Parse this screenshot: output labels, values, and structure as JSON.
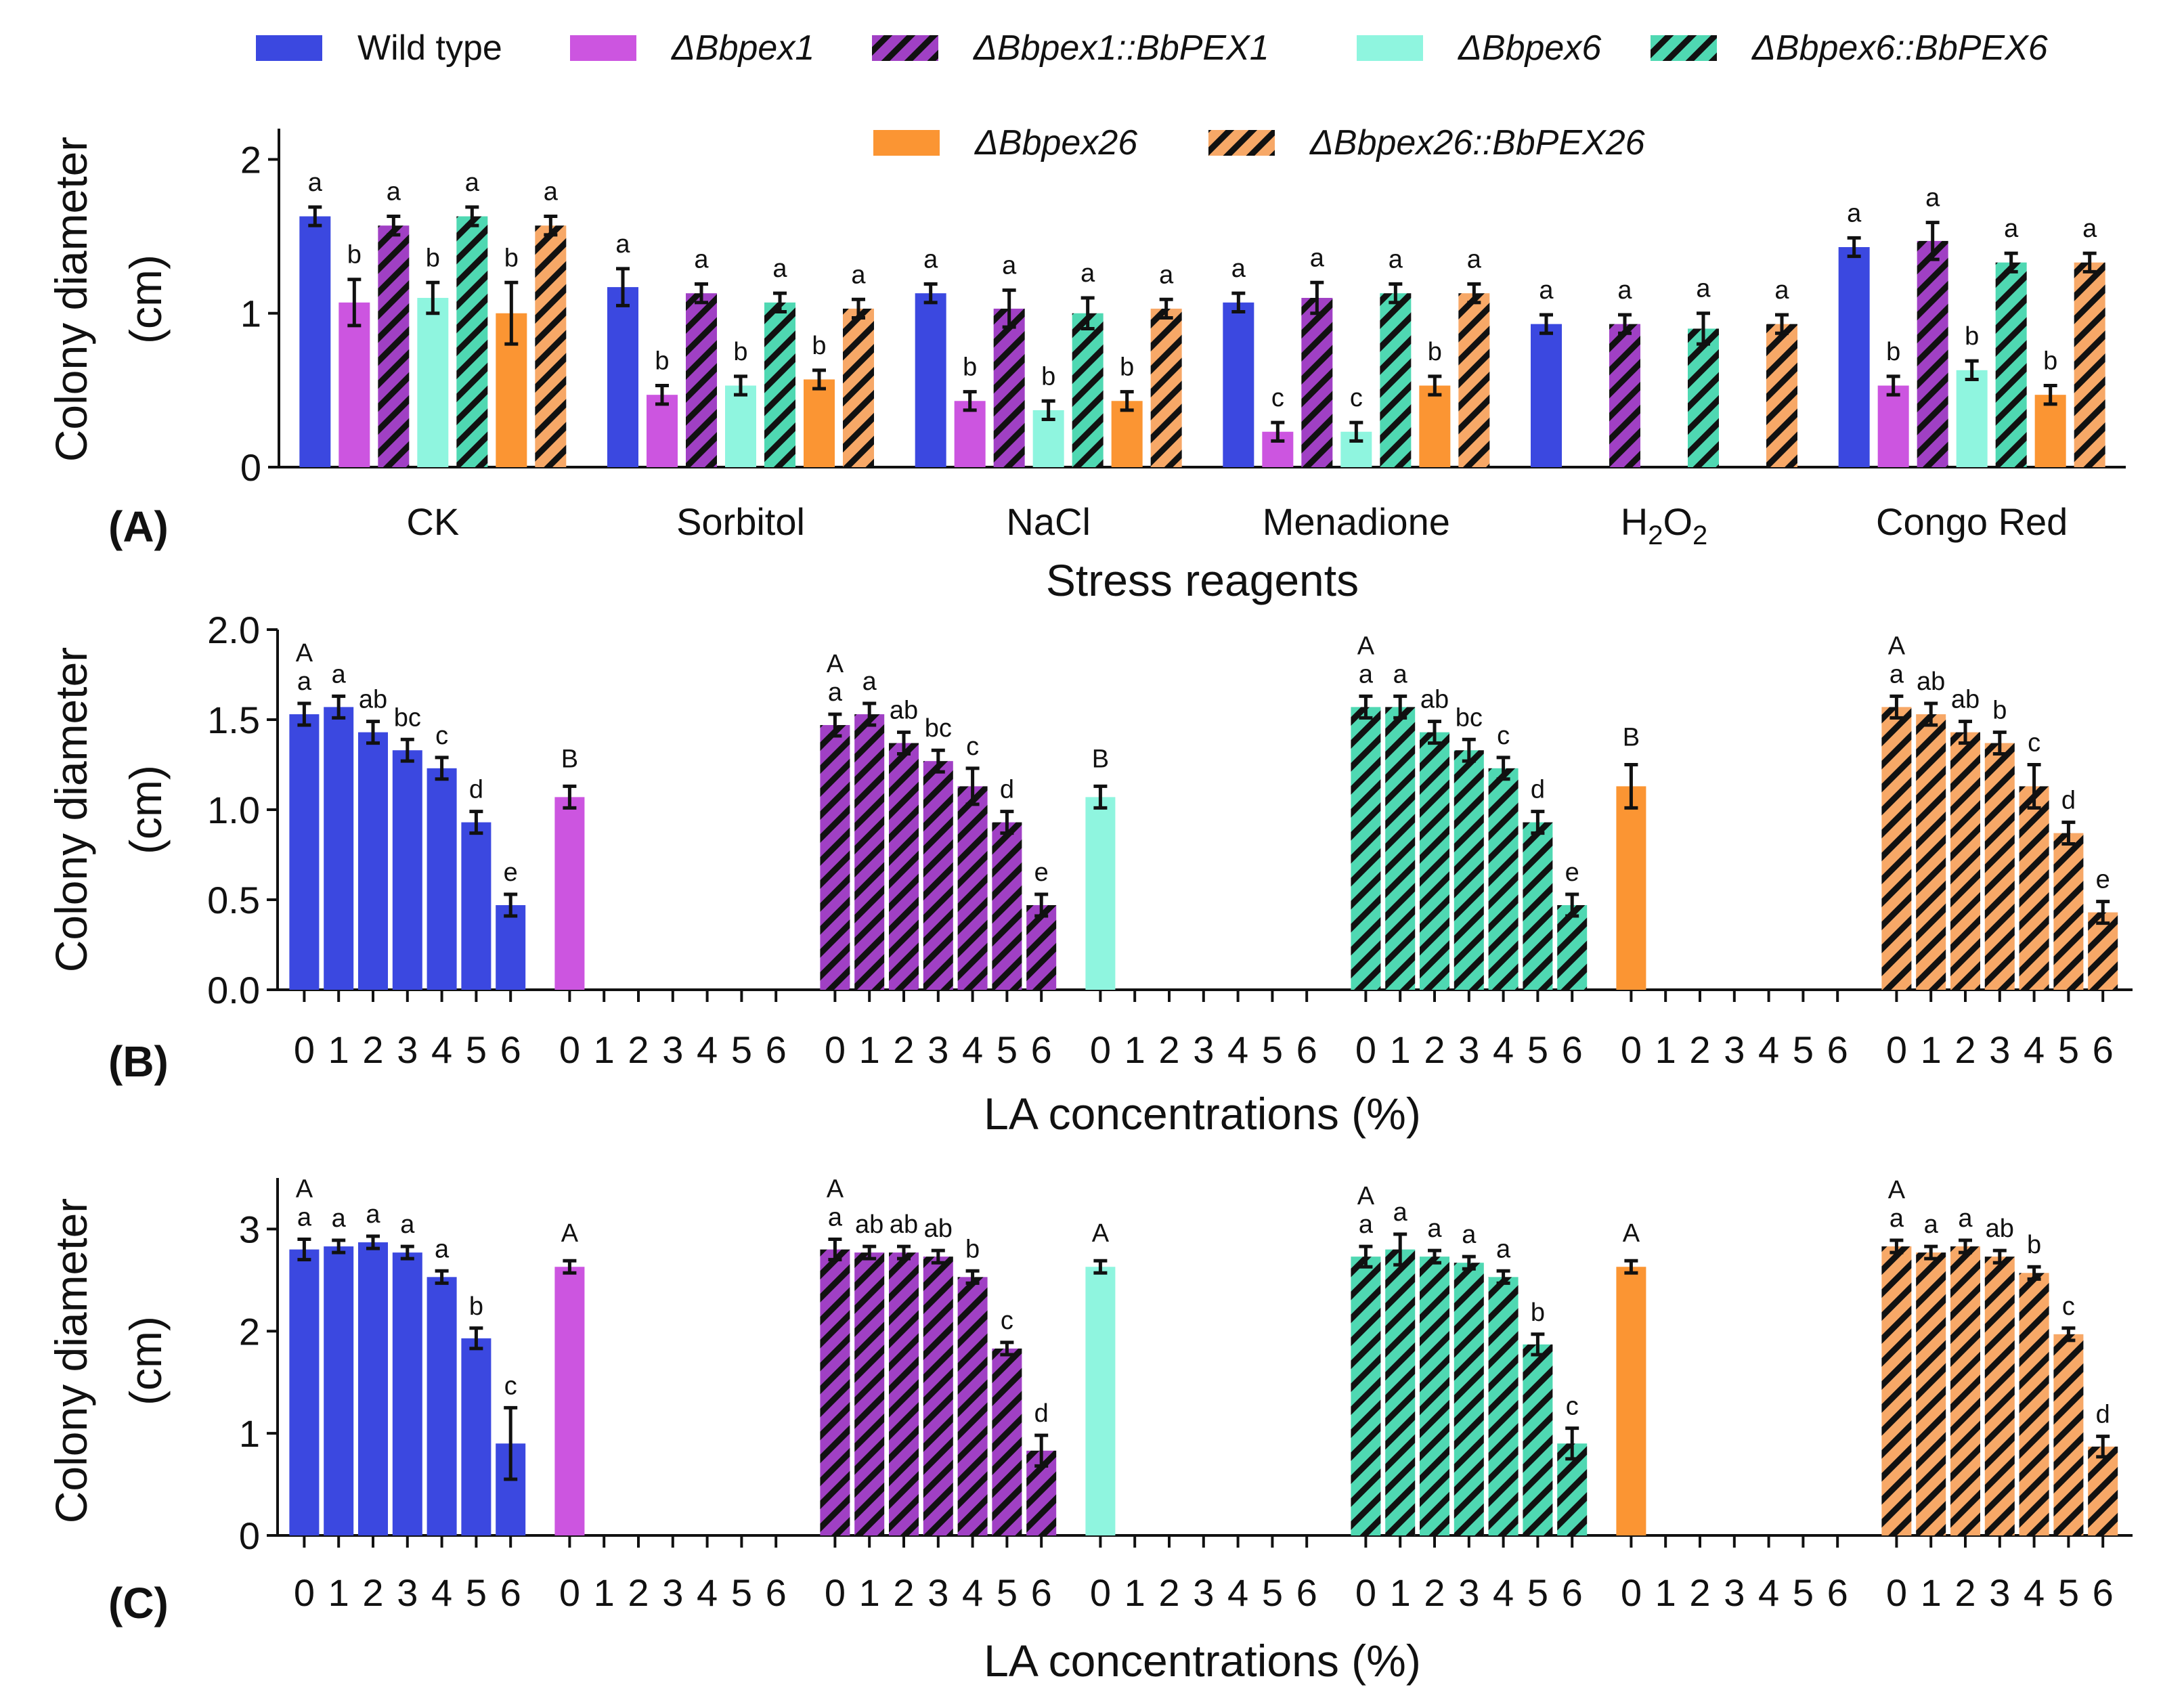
{
  "colors": {
    "wild_type": "#3b48e0",
    "pex1": "#cc55e0",
    "pex6": "#8ff5df",
    "pex26": "#fb9533",
    "pex1_comp_base": "#a040c4",
    "pex6_comp_base": "#4fd8b2",
    "pex26_comp_base": "#f7a867",
    "hatch": "#111111"
  },
  "legend": [
    {
      "key": "wt",
      "label": "Wild type",
      "color": "#3b48e0",
      "hatch": false,
      "italic": false
    },
    {
      "key": "p1",
      "label": "ΔBbpex1",
      "color": "#cc55e0",
      "hatch": false,
      "italic": true
    },
    {
      "key": "p1c",
      "label": "ΔBbpex1::BbPEX1",
      "color": "#a040c4",
      "hatch": true,
      "italic": true
    },
    {
      "key": "p6",
      "label": "ΔBbpex6",
      "color": "#8ff5df",
      "hatch": false,
      "italic": true
    },
    {
      "key": "p6c",
      "label": "ΔBbpex6::BbPEX6",
      "color": "#4fd8b2",
      "hatch": true,
      "italic": true
    },
    {
      "key": "p26",
      "label": "ΔBbpex26",
      "color": "#fb9533",
      "hatch": false,
      "italic": true
    },
    {
      "key": "p26c",
      "label": "ΔBbpex26::BbPEX26",
      "color": "#f7a867",
      "hatch": true,
      "italic": true
    }
  ],
  "chart_data": [
    {
      "panel": "(A)",
      "type": "bar",
      "ylabel_line1": "Colony diameter",
      "ylabel_line2": "(cm)",
      "xlabel": "Stress reagents",
      "ylim": [
        0,
        2.2
      ],
      "yticks": [
        "0",
        "1",
        "2"
      ],
      "ytick_values": [
        0,
        1,
        2
      ],
      "categories": [
        "CK",
        "Sorbitol",
        "NaCl",
        "Menadione",
        "H2O2",
        "Congo Red"
      ],
      "series": [
        {
          "name": "Wild type",
          "values": [
            1.63,
            1.17,
            1.13,
            1.07,
            0.93,
            1.43
          ],
          "errors": [
            0.06,
            0.12,
            0.06,
            0.06,
            0.06,
            0.06
          ],
          "letters": [
            "a",
            "a",
            "a",
            "a",
            "a",
            "a"
          ]
        },
        {
          "name": "ΔBbpex1",
          "values": [
            1.07,
            0.47,
            0.43,
            0.23,
            null,
            0.53
          ],
          "errors": [
            0.15,
            0.06,
            0.06,
            0.06,
            null,
            0.06
          ],
          "letters": [
            "b",
            "b",
            "b",
            "c",
            "",
            "b"
          ]
        },
        {
          "name": "ΔBbpex1::BbPEX1",
          "values": [
            1.57,
            1.13,
            1.03,
            1.1,
            0.93,
            1.47
          ],
          "errors": [
            0.06,
            0.06,
            0.12,
            0.1,
            0.06,
            0.12
          ],
          "letters": [
            "a",
            "a",
            "a",
            "a",
            "a",
            "a"
          ]
        },
        {
          "name": "ΔBbpex6",
          "values": [
            1.1,
            0.53,
            0.37,
            0.23,
            null,
            0.63
          ],
          "errors": [
            0.1,
            0.06,
            0.06,
            0.06,
            null,
            0.06
          ],
          "letters": [
            "b",
            "b",
            "b",
            "c",
            "",
            "b"
          ]
        },
        {
          "name": "ΔBbpex6::BbPEX6",
          "values": [
            1.63,
            1.07,
            1.0,
            1.13,
            0.9,
            1.33
          ],
          "errors": [
            0.06,
            0.06,
            0.1,
            0.06,
            0.1,
            0.06
          ],
          "letters": [
            "a",
            "a",
            "a",
            "a",
            "a",
            "a"
          ]
        },
        {
          "name": "ΔBbpex26",
          "values": [
            1.0,
            0.57,
            0.43,
            0.53,
            null,
            0.47
          ],
          "errors": [
            0.2,
            0.06,
            0.06,
            0.06,
            null,
            0.06
          ],
          "letters": [
            "b",
            "b",
            "b",
            "b",
            "",
            "b"
          ]
        },
        {
          "name": "ΔBbpex26::BbPEX26",
          "values": [
            1.57,
            1.03,
            1.03,
            1.13,
            0.93,
            1.33
          ],
          "errors": [
            0.06,
            0.06,
            0.06,
            0.06,
            0.06,
            0.06
          ],
          "letters": [
            "a",
            "a",
            "a",
            "a",
            "a",
            "a"
          ]
        }
      ]
    },
    {
      "panel": "(B)",
      "type": "bar",
      "ylabel_line1": "Colony diameter",
      "ylabel_line2": "(cm)",
      "xlabel": "LA concentrations (%)",
      "ylim": [
        0,
        2.0
      ],
      "yticks": [
        "0.0",
        "0.5",
        "1.0",
        "1.5",
        "2.0"
      ],
      "ytick_values": [
        0,
        0.5,
        1.0,
        1.5,
        2.0
      ],
      "concentrations": [
        "0",
        "1",
        "2",
        "3",
        "4",
        "5",
        "6"
      ],
      "groups": [
        {
          "name": "Wild type",
          "values": [
            1.53,
            1.57,
            1.43,
            1.33,
            1.23,
            0.93,
            0.47
          ],
          "errors": [
            0.06,
            0.06,
            0.06,
            0.06,
            0.06,
            0.06,
            0.06
          ],
          "letters": [
            "a",
            "a",
            "ab",
            "bc",
            "c",
            "d",
            "e"
          ],
          "cap": "A"
        },
        {
          "name": "ΔBbpex1",
          "values": [
            1.07,
            null,
            null,
            null,
            null,
            null,
            null
          ],
          "errors": [
            0.06,
            null,
            null,
            null,
            null,
            null,
            null
          ],
          "letters": [
            "",
            "",
            "",
            "",
            "",
            "",
            ""
          ],
          "cap": "B"
        },
        {
          "name": "ΔBbpex1::BbPEX1",
          "values": [
            1.47,
            1.53,
            1.37,
            1.27,
            1.13,
            0.93,
            0.47
          ],
          "errors": [
            0.06,
            0.06,
            0.06,
            0.06,
            0.1,
            0.06,
            0.06
          ],
          "letters": [
            "a",
            "a",
            "ab",
            "bc",
            "c",
            "d",
            "e"
          ],
          "cap": "A"
        },
        {
          "name": "ΔBbpex6",
          "values": [
            1.07,
            null,
            null,
            null,
            null,
            null,
            null
          ],
          "errors": [
            0.06,
            null,
            null,
            null,
            null,
            null,
            null
          ],
          "letters": [
            "",
            "",
            "",
            "",
            "",
            "",
            ""
          ],
          "cap": "B"
        },
        {
          "name": "ΔBbpex6::BbPEX6",
          "values": [
            1.57,
            1.57,
            1.43,
            1.33,
            1.23,
            0.93,
            0.47
          ],
          "errors": [
            0.06,
            0.06,
            0.06,
            0.06,
            0.06,
            0.06,
            0.06
          ],
          "letters": [
            "a",
            "a",
            "ab",
            "bc",
            "c",
            "d",
            "e"
          ],
          "cap": "A"
        },
        {
          "name": "ΔBbpex26",
          "values": [
            1.13,
            null,
            null,
            null,
            null,
            null,
            null
          ],
          "errors": [
            0.12,
            null,
            null,
            null,
            null,
            null,
            null
          ],
          "letters": [
            "",
            "",
            "",
            "",
            "",
            "",
            ""
          ],
          "cap": "B"
        },
        {
          "name": "ΔBbpex26::BbPEX26",
          "values": [
            1.57,
            1.53,
            1.43,
            1.37,
            1.13,
            0.87,
            0.43
          ],
          "errors": [
            0.06,
            0.06,
            0.06,
            0.06,
            0.12,
            0.06,
            0.06
          ],
          "letters": [
            "a",
            "ab",
            "ab",
            "b",
            "c",
            "d",
            "e"
          ],
          "cap": "A"
        }
      ]
    },
    {
      "panel": "(C)",
      "type": "bar",
      "ylabel_line1": "Colony diameter",
      "ylabel_line2": "(cm)",
      "xlabel": "LA concentrations (%)",
      "ylim": [
        0,
        3.5
      ],
      "yticks": [
        "0",
        "1",
        "2",
        "3"
      ],
      "ytick_values": [
        0,
        1,
        2,
        3
      ],
      "concentrations": [
        "0",
        "1",
        "2",
        "3",
        "4",
        "5",
        "6"
      ],
      "groups": [
        {
          "name": "Wild type",
          "values": [
            2.8,
            2.83,
            2.87,
            2.77,
            2.53,
            1.93,
            0.9
          ],
          "errors": [
            0.1,
            0.06,
            0.06,
            0.06,
            0.06,
            0.1,
            0.35
          ],
          "letters": [
            "a",
            "a",
            "a",
            "a",
            "a",
            "b",
            "c"
          ],
          "cap": "A"
        },
        {
          "name": "ΔBbpex1",
          "values": [
            2.63,
            null,
            null,
            null,
            null,
            null,
            null
          ],
          "errors": [
            0.06,
            null,
            null,
            null,
            null,
            null,
            null
          ],
          "letters": [
            "",
            "",
            "",
            "",
            "",
            "",
            ""
          ],
          "cap": "A"
        },
        {
          "name": "ΔBbpex1::BbPEX1",
          "values": [
            2.8,
            2.77,
            2.77,
            2.73,
            2.53,
            1.83,
            0.83
          ],
          "errors": [
            0.1,
            0.06,
            0.06,
            0.06,
            0.06,
            0.06,
            0.15
          ],
          "letters": [
            "a",
            "ab",
            "ab",
            "ab",
            "b",
            "c",
            "d"
          ],
          "cap": "A"
        },
        {
          "name": "ΔBbpex6",
          "values": [
            2.63,
            null,
            null,
            null,
            null,
            null,
            null
          ],
          "errors": [
            0.06,
            null,
            null,
            null,
            null,
            null,
            null
          ],
          "letters": [
            "",
            "",
            "",
            "",
            "",
            "",
            ""
          ],
          "cap": "A"
        },
        {
          "name": "ΔBbpex6::BbPEX6",
          "values": [
            2.73,
            2.8,
            2.73,
            2.67,
            2.53,
            1.87,
            0.9
          ],
          "errors": [
            0.1,
            0.15,
            0.06,
            0.06,
            0.06,
            0.1,
            0.15
          ],
          "letters": [
            "a",
            "a",
            "a",
            "a",
            "a",
            "b",
            "c"
          ],
          "cap": "A"
        },
        {
          "name": "ΔBbpex26",
          "values": [
            2.63,
            null,
            null,
            null,
            null,
            null,
            null
          ],
          "errors": [
            0.06,
            null,
            null,
            null,
            null,
            null,
            null
          ],
          "letters": [
            "",
            "",
            "",
            "",
            "",
            "",
            ""
          ],
          "cap": "A"
        },
        {
          "name": "ΔBbpex26::BbPEX26",
          "values": [
            2.83,
            2.77,
            2.83,
            2.73,
            2.57,
            1.97,
            0.87
          ],
          "errors": [
            0.06,
            0.06,
            0.06,
            0.06,
            0.06,
            0.06,
            0.1
          ],
          "letters": [
            "a",
            "a",
            "a",
            "ab",
            "b",
            "c",
            "d"
          ],
          "cap": "A"
        }
      ]
    }
  ]
}
